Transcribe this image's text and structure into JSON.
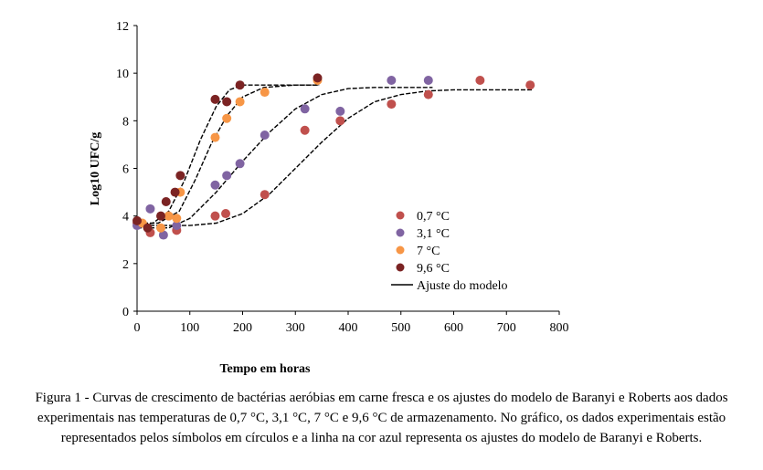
{
  "chart_data": {
    "type": "scatter",
    "xlabel": "Tempo em horas",
    "ylabel": "Log10 UFC/g",
    "xlim": [
      0,
      800
    ],
    "ylim": [
      0,
      12
    ],
    "xticks": [
      0,
      100,
      200,
      300,
      400,
      500,
      600,
      700,
      800
    ],
    "yticks": [
      0,
      2,
      4,
      6,
      8,
      10,
      12
    ],
    "grid": false,
    "legend_position": "bottom-right",
    "series": [
      {
        "name": "0,7 °C",
        "color": "#c0504d",
        "points": [
          [
            0,
            3.7
          ],
          [
            25,
            3.3
          ],
          [
            75,
            3.4
          ],
          [
            148,
            4.0
          ],
          [
            168,
            4.1
          ],
          [
            242,
            4.9
          ],
          [
            318,
            7.6
          ],
          [
            385,
            8.0
          ],
          [
            482,
            8.7
          ],
          [
            552,
            9.1
          ],
          [
            650,
            9.7
          ],
          [
            745,
            9.5
          ]
        ],
        "fit": [
          [
            0,
            3.6
          ],
          [
            100,
            3.6
          ],
          [
            150,
            3.7
          ],
          [
            200,
            4.1
          ],
          [
            250,
            4.9
          ],
          [
            300,
            6.0
          ],
          [
            350,
            7.1
          ],
          [
            400,
            8.1
          ],
          [
            450,
            8.8
          ],
          [
            500,
            9.1
          ],
          [
            550,
            9.25
          ],
          [
            600,
            9.3
          ],
          [
            750,
            9.3
          ]
        ]
      },
      {
        "name": "3,1 °C",
        "color": "#8064a2",
        "points": [
          [
            0,
            3.6
          ],
          [
            25,
            4.3
          ],
          [
            50,
            3.2
          ],
          [
            75,
            3.6
          ],
          [
            148,
            5.3
          ],
          [
            170,
            5.7
          ],
          [
            195,
            6.2
          ],
          [
            242,
            7.4
          ],
          [
            318,
            8.5
          ],
          [
            385,
            8.4
          ],
          [
            482,
            9.7
          ],
          [
            552,
            9.7
          ]
        ],
        "fit": [
          [
            0,
            3.5
          ],
          [
            60,
            3.5
          ],
          [
            100,
            3.9
          ],
          [
            150,
            5.0
          ],
          [
            200,
            6.3
          ],
          [
            250,
            7.5
          ],
          [
            300,
            8.5
          ],
          [
            350,
            9.1
          ],
          [
            400,
            9.35
          ],
          [
            450,
            9.4
          ],
          [
            560,
            9.4
          ]
        ]
      },
      {
        "name": "7 °C",
        "color": "#f79646",
        "points": [
          [
            10,
            3.7
          ],
          [
            45,
            3.5
          ],
          [
            60,
            4.0
          ],
          [
            75,
            3.9
          ],
          [
            82,
            5.0
          ],
          [
            148,
            7.3
          ],
          [
            170,
            8.1
          ],
          [
            195,
            8.8
          ],
          [
            242,
            9.2
          ],
          [
            342,
            9.7
          ]
        ],
        "fit": [
          [
            0,
            3.7
          ],
          [
            40,
            3.7
          ],
          [
            80,
            4.2
          ],
          [
            110,
            5.5
          ],
          [
            140,
            7.0
          ],
          [
            170,
            8.2
          ],
          [
            200,
            9.0
          ],
          [
            240,
            9.4
          ],
          [
            300,
            9.5
          ],
          [
            345,
            9.5
          ]
        ]
      },
      {
        "name": "9,6 °C",
        "color": "#7b2323",
        "points": [
          [
            0,
            3.8
          ],
          [
            20,
            3.5
          ],
          [
            45,
            4.0
          ],
          [
            55,
            4.6
          ],
          [
            72,
            5.0
          ],
          [
            82,
            5.7
          ],
          [
            148,
            8.9
          ],
          [
            170,
            8.8
          ],
          [
            195,
            9.5
          ],
          [
            342,
            9.8
          ]
        ],
        "fit": [
          [
            0,
            3.6
          ],
          [
            30,
            3.7
          ],
          [
            60,
            4.2
          ],
          [
            90,
            5.5
          ],
          [
            120,
            7.2
          ],
          [
            150,
            8.6
          ],
          [
            175,
            9.3
          ],
          [
            200,
            9.5
          ],
          [
            345,
            9.5
          ]
        ]
      }
    ],
    "model_legend": "Ajuste do modelo"
  },
  "caption": {
    "lead": "Figura 1 -",
    "text": "Curvas de crescimento de bactérias aeróbias em carne fresca e os ajustes do modelo de Baranyi e Roberts aos dados experimentais nas temperaturas de 0,7 °C, 3,1 °C, 7 °C e 9,6 °C de armazenamento. No gráfico, os dados experimentais estão representados pelos símbolos em círculos e a linha na cor azul representa os ajustes do modelo de Baranyi e Roberts."
  }
}
